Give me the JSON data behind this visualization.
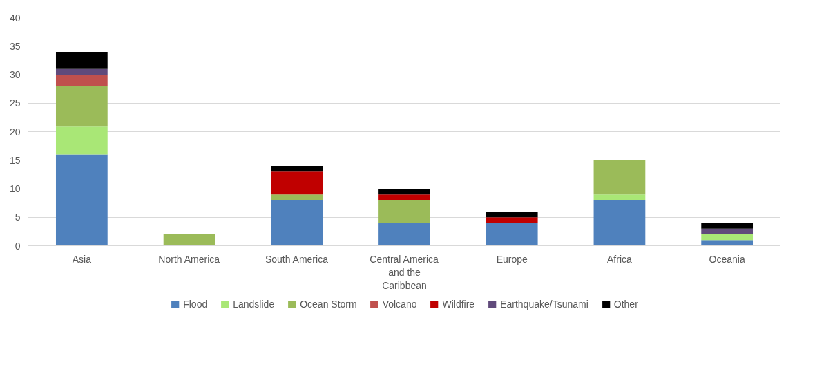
{
  "chart_data": {
    "type": "bar",
    "stacked": true,
    "categories": [
      "Asia",
      "North America",
      "South America",
      "Central America and the Caribbean",
      "Europe",
      "Africa",
      "Oceania"
    ],
    "series": [
      {
        "name": "Flood",
        "color": "#4f81bd",
        "values": [
          16,
          0,
          8,
          4,
          4,
          8,
          1
        ]
      },
      {
        "name": "Landslide",
        "color": "#a9e776",
        "values": [
          5,
          0,
          0,
          0,
          0,
          1,
          1
        ]
      },
      {
        "name": "Ocean Storm",
        "color": "#9bbb59",
        "values": [
          7,
          2,
          1,
          4,
          0,
          6,
          0
        ]
      },
      {
        "name": "Volcano",
        "color": "#c0504d",
        "values": [
          2,
          0,
          0,
          0,
          0,
          0,
          0
        ]
      },
      {
        "name": "Wildfire",
        "color": "#c00000",
        "values": [
          0,
          0,
          4,
          1,
          1,
          0,
          0
        ]
      },
      {
        "name": "Earthquake/Tsunami",
        "color": "#604a7b",
        "values": [
          1,
          0,
          0,
          0,
          0,
          0,
          1
        ]
      },
      {
        "name": "Other",
        "color": "#000000",
        "values": [
          3,
          0,
          1,
          1,
          1,
          0,
          1
        ]
      }
    ],
    "ylim": [
      0,
      40
    ],
    "yticks": [
      0,
      5,
      10,
      15,
      20,
      25,
      30,
      35,
      40
    ],
    "grid": "y",
    "legend": "bottom"
  }
}
